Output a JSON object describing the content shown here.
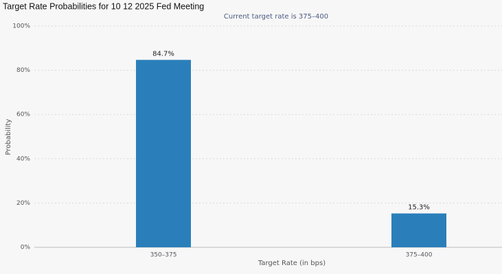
{
  "chart_data": {
    "type": "bar",
    "title": "Target Rate Probabilities for 10 12 2025 Fed Meeting",
    "subtitle": "Current target rate is 375–400",
    "x_label": "Target Rate (in bps)",
    "y_label": "Probability",
    "categories": [
      "350–375",
      "375–400"
    ],
    "values": [
      84.7,
      15.3
    ],
    "value_labels": [
      "84.7%",
      "15.3%"
    ],
    "color": "#2a7fba",
    "ylim": [
      0,
      100
    ],
    "yticks": [
      {
        "value": 0,
        "label": "0%"
      },
      {
        "value": 20,
        "label": "20%"
      },
      {
        "value": 40,
        "label": "40%"
      },
      {
        "value": 60,
        "label": "60%"
      },
      {
        "value": 80,
        "label": "80%"
      },
      {
        "value": 100,
        "label": "100%"
      }
    ],
    "grid": true
  }
}
